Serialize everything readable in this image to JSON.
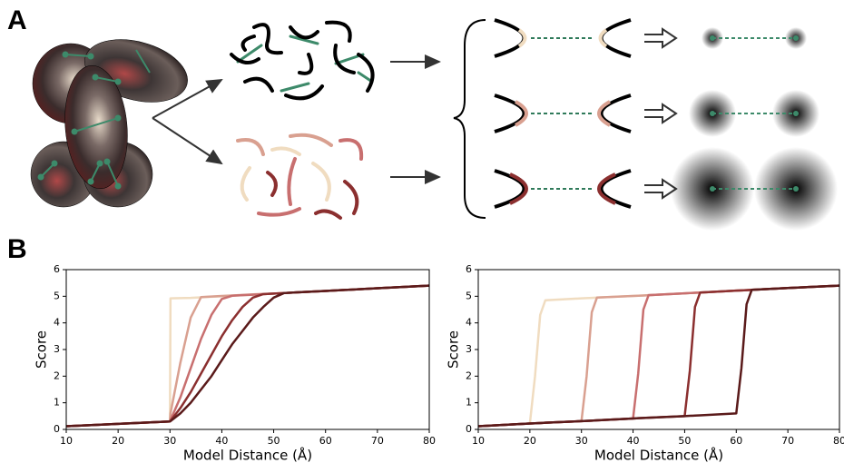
{
  "panel_labels": [
    "A",
    "B"
  ],
  "chart_data": [
    {
      "type": "line",
      "xlabel": "Model Distance (Å)",
      "ylabel": "Score",
      "x": [
        10,
        20,
        30,
        30.1,
        32,
        34,
        36,
        38,
        40,
        42,
        44,
        46,
        48,
        50,
        52,
        55,
        60,
        70,
        80
      ],
      "xlim": [
        10,
        80
      ],
      "xticks": [
        10,
        20,
        30,
        40,
        50,
        60,
        70,
        80
      ],
      "ylim": [
        0,
        6
      ],
      "yticks": [
        0,
        1,
        2,
        3,
        4,
        5,
        6
      ],
      "grid": false,
      "series": [
        {
          "color": "#f0dcc0",
          "values": [
            0.12,
            0.21,
            0.3,
            4.92,
            4.93,
            4.94,
            4.96,
            4.98,
            5.0,
            5.02,
            5.04,
            5.06,
            5.08,
            5.1,
            5.12,
            5.15,
            5.2,
            5.3,
            5.4
          ]
        },
        {
          "color": "#d9a090",
          "values": [
            0.12,
            0.21,
            0.3,
            0.6,
            2.5,
            4.2,
            4.97,
            4.99,
            5.01,
            5.03,
            5.05,
            5.07,
            5.09,
            5.1,
            5.12,
            5.15,
            5.2,
            5.3,
            5.4
          ]
        },
        {
          "color": "#c86f6f",
          "values": [
            0.12,
            0.21,
            0.3,
            0.35,
            1.2,
            2.3,
            3.4,
            4.3,
            4.9,
            5.02,
            5.04,
            5.06,
            5.08,
            5.1,
            5.12,
            5.15,
            5.2,
            5.3,
            5.4
          ]
        },
        {
          "color": "#8b2f2f",
          "values": [
            0.12,
            0.21,
            0.3,
            0.32,
            0.8,
            1.4,
            2.1,
            2.8,
            3.5,
            4.1,
            4.6,
            4.95,
            5.08,
            5.1,
            5.12,
            5.15,
            5.2,
            5.3,
            5.4
          ]
        },
        {
          "color": "#5a1a1a",
          "values": [
            0.12,
            0.21,
            0.3,
            0.31,
            0.6,
            1.0,
            1.5,
            2.0,
            2.6,
            3.2,
            3.7,
            4.2,
            4.6,
            4.95,
            5.12,
            5.15,
            5.2,
            5.3,
            5.4
          ]
        }
      ]
    },
    {
      "type": "line",
      "xlabel": "Model Distance (Å)",
      "ylabel": "Score",
      "x": [
        10,
        20,
        21,
        22,
        23,
        30,
        31,
        32,
        33,
        40,
        41,
        42,
        43,
        50,
        51,
        52,
        53,
        60,
        61,
        62,
        63,
        70,
        80
      ],
      "xlim": [
        10,
        80
      ],
      "xticks": [
        10,
        20,
        30,
        40,
        50,
        60,
        70,
        80
      ],
      "ylim": [
        0,
        6
      ],
      "yticks": [
        0,
        1,
        2,
        3,
        4,
        5,
        6
      ],
      "grid": false,
      "series": [
        {
          "color": "#f0dcc0",
          "values": [
            0.12,
            0.22,
            2.0,
            4.3,
            4.85,
            4.92,
            4.93,
            4.94,
            4.95,
            5.01,
            5.02,
            5.03,
            5.04,
            5.11,
            5.12,
            5.13,
            5.14,
            5.21,
            5.22,
            5.23,
            5.24,
            5.31,
            5.4
          ]
        },
        {
          "color": "#d9a090",
          "values": [
            0.12,
            0.22,
            0.23,
            0.24,
            0.25,
            0.31,
            2.0,
            4.4,
            4.95,
            5.01,
            5.02,
            5.03,
            5.04,
            5.11,
            5.12,
            5.13,
            5.14,
            5.21,
            5.22,
            5.23,
            5.24,
            5.31,
            5.4
          ]
        },
        {
          "color": "#c86f6f",
          "values": [
            0.12,
            0.22,
            0.23,
            0.24,
            0.25,
            0.31,
            0.32,
            0.33,
            0.34,
            0.41,
            2.1,
            4.5,
            5.04,
            5.11,
            5.12,
            5.13,
            5.14,
            5.21,
            5.22,
            5.23,
            5.24,
            5.31,
            5.4
          ]
        },
        {
          "color": "#8b2f2f",
          "values": [
            0.12,
            0.22,
            0.23,
            0.24,
            0.25,
            0.31,
            0.32,
            0.33,
            0.34,
            0.41,
            0.42,
            0.43,
            0.44,
            0.5,
            2.2,
            4.6,
            5.14,
            5.21,
            5.22,
            5.23,
            5.24,
            5.31,
            5.4
          ]
        },
        {
          "color": "#5a1a1a",
          "values": [
            0.12,
            0.22,
            0.23,
            0.24,
            0.25,
            0.31,
            0.32,
            0.33,
            0.34,
            0.41,
            0.42,
            0.43,
            0.44,
            0.5,
            0.51,
            0.52,
            0.53,
            0.6,
            2.3,
            4.7,
            5.24,
            5.31,
            5.4
          ]
        }
      ]
    }
  ]
}
